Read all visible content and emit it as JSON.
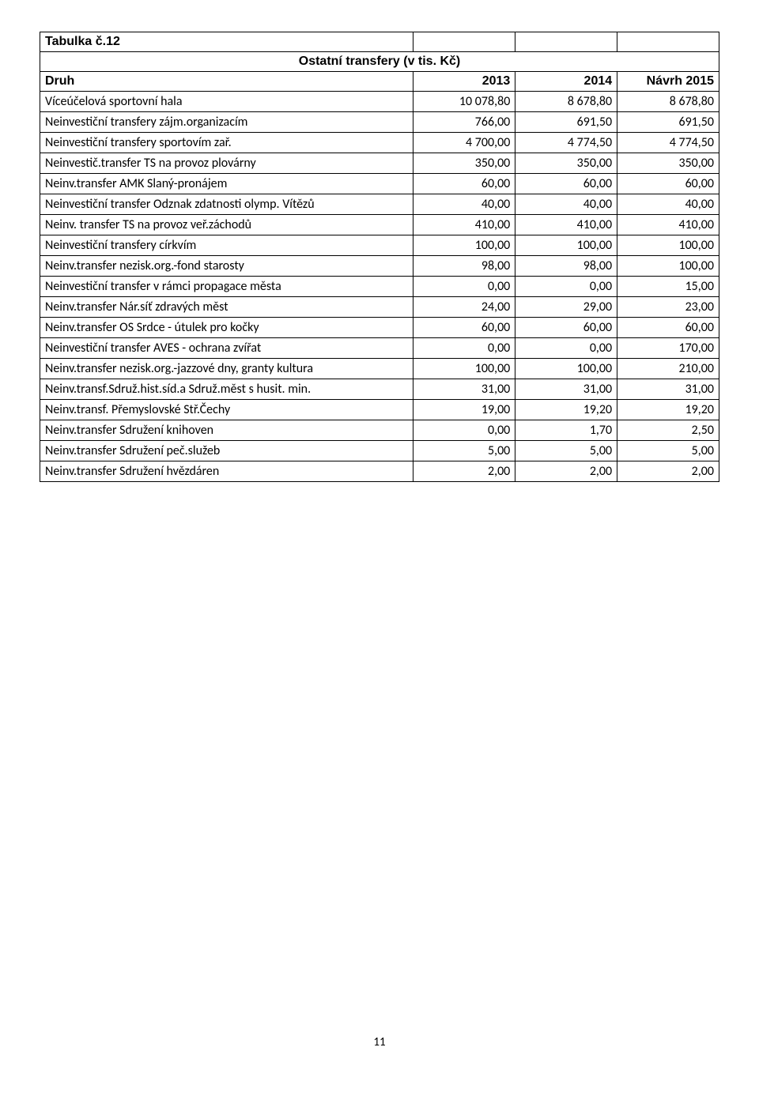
{
  "table": {
    "title": "Tabulka č.12",
    "subtitle": "Ostatní transfery (v tis. Kč)",
    "columns": [
      "Druh",
      "2013",
      "2014",
      "Návrh 2015"
    ],
    "rows": [
      [
        "Víceúčelová sportovní hala",
        "10 078,80",
        "8 678,80",
        "8 678,80"
      ],
      [
        "Neinvestiční transfery zájm.organizacím",
        "766,00",
        "691,50",
        "691,50"
      ],
      [
        "Neinvestiční transfery sportovím zař.",
        "4 700,00",
        "4 774,50",
        "4 774,50"
      ],
      [
        "Neinvestič.transfer TS na provoz plovárny",
        "350,00",
        "350,00",
        "350,00"
      ],
      [
        "Neinv.transfer AMK Slaný-pronájem",
        "60,00",
        "60,00",
        "60,00"
      ],
      [
        "Neinvestiční transfer Odznak zdatnosti olymp. Vítězů",
        "40,00",
        "40,00",
        "40,00"
      ],
      [
        "Neinv. transfer TS na provoz veř.záchodů",
        "410,00",
        "410,00",
        "410,00"
      ],
      [
        "Neinvestiční transfery církvím",
        "100,00",
        "100,00",
        "100,00"
      ],
      [
        "Neinv.transfer nezisk.org.-fond starosty",
        "98,00",
        "98,00",
        "100,00"
      ],
      [
        "Neinvestiční transfer v rámci propagace města",
        "0,00",
        "0,00",
        "15,00"
      ],
      [
        "Neinv.transfer Nár.síť zdravých měst",
        "24,00",
        "29,00",
        "23,00"
      ],
      [
        "Neinv.transfer OS Srdce - útulek pro kočky",
        "60,00",
        "60,00",
        "60,00"
      ],
      [
        "Neinvestiční transfer AVES - ochrana zvířat",
        "0,00",
        "0,00",
        "170,00"
      ],
      [
        "Neinv.transfer nezisk.org.-jazzové dny, granty kultura",
        "100,00",
        "100,00",
        "210,00"
      ],
      [
        "Neinv.transf.Sdruž.hist.síd.a Sdruž.měst s husit. min.",
        "31,00",
        "31,00",
        "31,00"
      ],
      [
        "Neinv.transf. Přemyslovské Stř.Čechy",
        "19,00",
        "19,20",
        "19,20"
      ],
      [
        "Neinv.transfer Sdružení knihoven",
        "0,00",
        "1,70",
        "2,50"
      ],
      [
        "Neinv.transfer Sdružení peč.služeb",
        "5,00",
        "5,00",
        "5,00"
      ],
      [
        "Neinv.transfer Sdružení hvězdáren",
        "2,00",
        "2,00",
        "2,00"
      ]
    ]
  },
  "page_number": "11"
}
